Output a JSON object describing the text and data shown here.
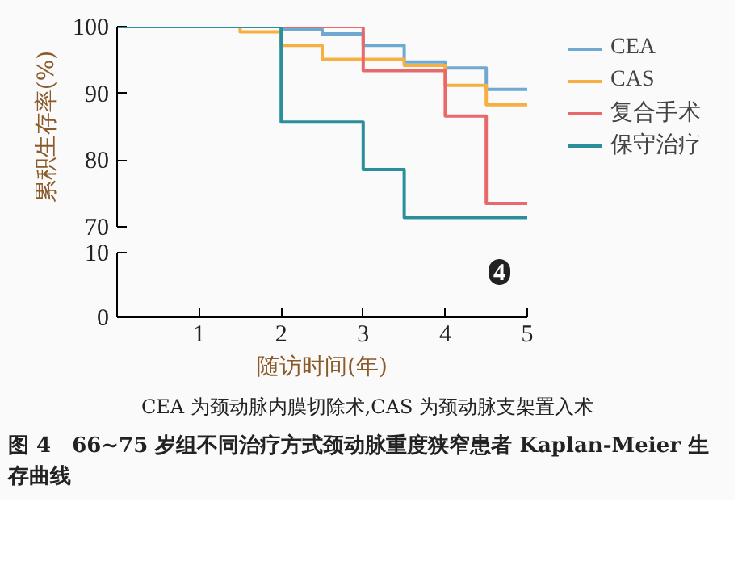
{
  "chart_data": [
    {
      "type": "step",
      "ylabel": "累积生存率(%)",
      "xlim": [
        0,
        5
      ],
      "ylim": [
        70,
        100
      ],
      "yticks": [
        70,
        80,
        90,
        100
      ],
      "tick_labels": "y",
      "legend": "right",
      "line_style": "solid",
      "series": [
        {
          "name": "CEA",
          "color": "#6fa8d0",
          "x": [
            0,
            2,
            2.5,
            3,
            3.5,
            4,
            4.5,
            5
          ],
          "values": [
            100,
            99.6,
            98.9,
            97.2,
            94.7,
            93.8,
            90.6,
            90.6
          ]
        },
        {
          "name": "CAS",
          "color": "#f5b041",
          "x": [
            0,
            1.5,
            2,
            2.5,
            3.5,
            4,
            4.5,
            5
          ],
          "values": [
            100,
            99.2,
            97.2,
            95.1,
            94.2,
            91.2,
            88.3,
            88.3
          ]
        },
        {
          "name": "复合手术",
          "color": "#e8686c",
          "x": [
            0,
            3,
            4,
            4.5,
            5
          ],
          "values": [
            100,
            93.4,
            86.6,
            73.5,
            73.5
          ]
        },
        {
          "name": "保守治疗",
          "color": "#2a8f9a",
          "x": [
            0,
            2,
            3,
            3.5,
            5
          ],
          "values": [
            100,
            85.7,
            78.6,
            71.4,
            71.4
          ]
        }
      ]
    },
    {
      "type": "line",
      "xlabel": "随访时间(年)",
      "xlim": [
        0,
        5
      ],
      "xticks": [
        1,
        2,
        3,
        4,
        5
      ],
      "ylim": [
        0,
        10
      ],
      "yticks": [
        0,
        10
      ],
      "annotations": [
        "4",
        "CEA 为颈动脉内膜切除术,CAS 为颈动脉支架置入术",
        "图 4　66~75 岁组不同治疗方式颈动脉重度狭窄患者 Kaplan-Meier 生存曲线"
      ]
    }
  ]
}
